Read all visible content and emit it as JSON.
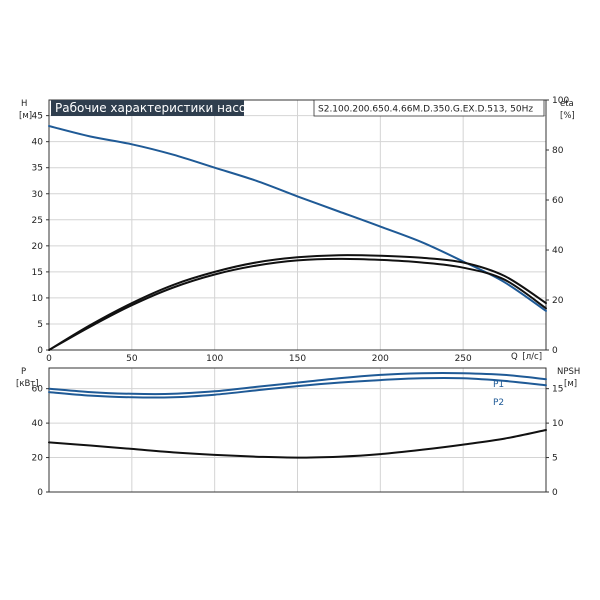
{
  "chart_data": [
    {
      "type": "line",
      "title": "Рабочие характеристики насоса",
      "subtitle": "S2.100.200.650.4.66M.D.350.G.EX.D.513, 50Hz",
      "x": {
        "label": "Q",
        "unit": "[л/с]",
        "ticks": [
          0,
          50,
          100,
          150,
          200,
          250
        ],
        "lim": [
          0,
          300
        ]
      },
      "y_left": {
        "label": "H",
        "unit": "[м]",
        "ticks": [
          0,
          5,
          10,
          15,
          20,
          25,
          30,
          35,
          40,
          45
        ],
        "lim": [
          0,
          48
        ]
      },
      "y_right": {
        "label": "eta",
        "unit": "[%]",
        "ticks": [
          0,
          20,
          40,
          60,
          80,
          100
        ],
        "lim": [
          0,
          100
        ]
      },
      "grid": true,
      "series": [
        {
          "axis": "left",
          "color": "#1f5a96",
          "x": [
            0,
            25,
            50,
            75,
            100,
            125,
            150,
            175,
            200,
            225,
            250,
            275,
            300
          ],
          "y": [
            43,
            41,
            39.5,
            37.5,
            35,
            32.5,
            29.5,
            26.6,
            23.7,
            20.7,
            17,
            13,
            7.5
          ]
        },
        {
          "axis": "left",
          "color": "#111111",
          "x": [
            0,
            25,
            50,
            75,
            100,
            125,
            150,
            175,
            200,
            225,
            250,
            275,
            300
          ],
          "y": [
            0,
            4.8,
            9,
            12.5,
            15,
            16.8,
            17.8,
            18.2,
            18.1,
            17.7,
            16.8,
            14.2,
            9
          ]
        },
        {
          "axis": "left",
          "color": "#111111",
          "x": [
            0,
            25,
            50,
            75,
            100,
            125,
            150,
            175,
            200,
            225,
            250,
            275,
            300
          ],
          "y": [
            0,
            4.5,
            8.6,
            12,
            14.5,
            16.2,
            17.2,
            17.5,
            17.3,
            16.8,
            15.8,
            13.5,
            8
          ]
        }
      ]
    },
    {
      "type": "line",
      "x": {
        "ticks": [
          0,
          50,
          100,
          150,
          200,
          250
        ],
        "lim": [
          0,
          300
        ]
      },
      "y_left": {
        "label": "P",
        "unit": "[кВт]",
        "ticks": [
          0,
          20,
          40,
          60
        ],
        "lim": [
          0,
          72
        ]
      },
      "y_right": {
        "label": "NPSH",
        "unit": "[м]",
        "ticks": [
          0,
          5,
          10,
          15
        ],
        "lim": [
          0,
          18
        ]
      },
      "grid": true,
      "series": [
        {
          "name": "P1",
          "axis": "left",
          "color": "#1f5a96",
          "x": [
            0,
            25,
            50,
            75,
            100,
            125,
            150,
            175,
            200,
            225,
            250,
            275,
            300
          ],
          "y": [
            60,
            58,
            57,
            57,
            58.5,
            61,
            63.5,
            66,
            68,
            69,
            69,
            68,
            65.5
          ]
        },
        {
          "name": "P2",
          "axis": "left",
          "color": "#1f5a96",
          "x": [
            0,
            25,
            50,
            75,
            100,
            125,
            150,
            175,
            200,
            225,
            250,
            275,
            300
          ],
          "y": [
            58,
            56,
            55,
            55,
            56.5,
            59,
            61.5,
            63.5,
            65,
            66,
            66,
            64.5,
            62
          ]
        },
        {
          "axis": "right",
          "color": "#111111",
          "x": [
            0,
            25,
            50,
            75,
            100,
            125,
            150,
            175,
            200,
            225,
            250,
            275,
            300
          ],
          "y": [
            7.2,
            6.75,
            6.25,
            5.75,
            5.38,
            5.13,
            5.0,
            5.13,
            5.5,
            6.13,
            6.88,
            7.75,
            9.0
          ]
        }
      ]
    }
  ]
}
